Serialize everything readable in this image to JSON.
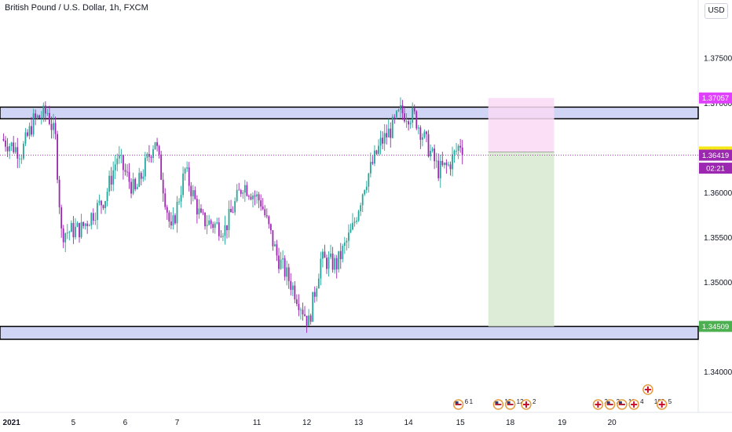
{
  "header": {
    "title": "British Pound / U.S. Dollar, 1h, FXCM",
    "currency_button": "USD"
  },
  "colors": {
    "bull": "#26a69a",
    "bear": "#9c27b0",
    "zone_fill": "#c5cbf2",
    "zone_border": "#000000",
    "stop_fill": "#f9d9f5",
    "target_fill": "#d9ead3",
    "current_price": "#f6e91a",
    "stop_tag": "#e040fb",
    "target_tag": "#4caf50",
    "last_tag": "#9c27b0"
  },
  "chart_data": {
    "type": "candlestick",
    "title": "British Pound / U.S. Dollar, 1h, FXCM",
    "ylim": [
      1.3355,
      1.3815
    ],
    "y_ticks": [
      "1.37500",
      "1.37000",
      "1.36000",
      "1.35500",
      "1.35000",
      "1.34000"
    ],
    "y_tick_values": [
      1.375,
      1.37,
      1.36,
      1.355,
      1.35,
      1.34
    ],
    "x_ticks": [
      "2021",
      "5",
      "6",
      "7",
      "11",
      "12",
      "13",
      "14",
      "15",
      "18",
      "19",
      "20"
    ],
    "x_tick_index": [
      4,
      35,
      61,
      87,
      127,
      152,
      178,
      203,
      229,
      254,
      280,
      305
    ],
    "candle_count": 231,
    "pivots": [
      [
        0,
        1.366
      ],
      [
        10,
        1.3645
      ],
      [
        16,
        1.368
      ],
      [
        23,
        1.369
      ],
      [
        27,
        1.366
      ],
      [
        30,
        1.3555
      ],
      [
        40,
        1.356
      ],
      [
        52,
        1.3595
      ],
      [
        58,
        1.364
      ],
      [
        67,
        1.36
      ],
      [
        77,
        1.366
      ],
      [
        85,
        1.3555
      ],
      [
        92,
        1.3625
      ],
      [
        100,
        1.357
      ],
      [
        112,
        1.356
      ],
      [
        121,
        1.361
      ],
      [
        130,
        1.359
      ],
      [
        138,
        1.353
      ],
      [
        147,
        1.349
      ],
      [
        154,
        1.3455
      ],
      [
        160,
        1.3525
      ],
      [
        168,
        1.352
      ],
      [
        176,
        1.356
      ],
      [
        182,
        1.361
      ],
      [
        190,
        1.3655
      ],
      [
        195,
        1.367
      ],
      [
        200,
        1.369
      ],
      [
        207,
        1.3685
      ],
      [
        213,
        1.3655
      ],
      [
        219,
        1.3625
      ],
      [
        224,
        1.363
      ],
      [
        230,
        1.3655
      ],
      [
        236,
        1.363
      ],
      [
        240,
        1.3645
      ],
      [
        243,
        1.3642
      ]
    ],
    "zones": [
      {
        "top": 1.36955,
        "bottom": 1.36825
      },
      {
        "top": 1.34509,
        "bottom": 1.34365
      }
    ],
    "position": {
      "side": "short",
      "start_index": 243,
      "end_index": 276,
      "entry": 1.36455,
      "stop": 1.37057,
      "target": 1.34509
    },
    "price_labels": {
      "stop": "1.37057",
      "current": "1.36455",
      "last": "1.36419",
      "countdown": "02:21",
      "target": "1.34509"
    },
    "events": [
      {
        "index": 228,
        "type": "us",
        "count": "6",
        "extra": "1"
      },
      {
        "index": 248,
        "type": "us",
        "count": "13"
      },
      {
        "index": 254,
        "type": "us",
        "count": "12"
      },
      {
        "index": 262,
        "type": "uk",
        "count": "2"
      },
      {
        "index": 298,
        "type": "uk",
        "count": "2"
      },
      {
        "index": 304,
        "type": "us",
        "count": "2"
      },
      {
        "index": 310,
        "type": "us",
        "count": "11"
      },
      {
        "index": 316,
        "type": "uk",
        "count": "4"
      },
      {
        "index": 323,
        "type": "uk",
        "count": "103"
      },
      {
        "index": 330,
        "type": "uk",
        "count": "5"
      }
    ]
  }
}
